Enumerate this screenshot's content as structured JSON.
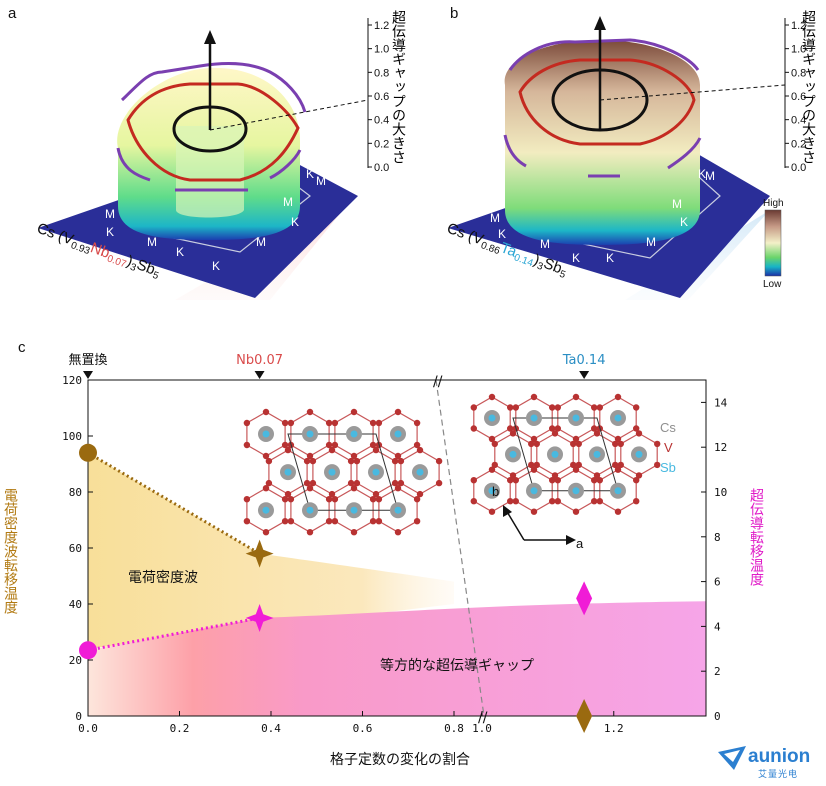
{
  "panel_a": {
    "letter": "a",
    "axis_title": "超伝導ギャップの大きさ",
    "ticks": [
      "1.2",
      "1.0",
      "0.8",
      "0.6",
      "0.4",
      "0.2",
      "0.0"
    ],
    "formula": {
      "prefix": "Cs (V",
      "sub1": "0.93",
      "dopant": "Nb",
      "sub2": "0.07",
      "suffix": ")",
      "sub3": "3",
      "tail": "Sb",
      "sub4": "5"
    },
    "labels": [
      "M",
      "M",
      "M",
      "M",
      "M",
      "M",
      "K",
      "K",
      "K",
      "K",
      "K",
      "K"
    ]
  },
  "panel_b": {
    "letter": "b",
    "axis_title": "超伝導ギャップの大きさ",
    "ticks": [
      "1.2",
      "1.0",
      "0.8",
      "0.6",
      "0.4",
      "0.2",
      "0.0"
    ],
    "formula": {
      "prefix": "Cs (V",
      "sub1": "0.86",
      "dopant": "Ta",
      "sub2": "0.14",
      "suffix": ")",
      "sub3": "3",
      "tail": "Sb",
      "sub4": "5"
    },
    "labels": [
      "M",
      "M",
      "M",
      "M",
      "M",
      "M",
      "K",
      "K",
      "K",
      "K",
      "K",
      "K"
    ],
    "colorbar": {
      "high": "High",
      "low": "Low"
    }
  },
  "panel_c": {
    "letter": "c"
  },
  "chart_data": {
    "type": "scatter",
    "xlabel": "格子定数の変化の割合",
    "ylabel_left": "電荷密度波転移温度",
    "ylabel_right": "超伝導転移温度",
    "x_ticks": [
      "0.0",
      "0.2",
      "0.4",
      "0.6",
      "0.8",
      "1.0",
      "1.2"
    ],
    "y_left_ticks": [
      "0",
      "20",
      "40",
      "60",
      "80",
      "100",
      "120"
    ],
    "y_right_ticks": [
      "0",
      "2",
      "4",
      "6",
      "8",
      "10",
      "12",
      "14"
    ],
    "xlim": [
      0.0,
      1.34
    ],
    "x_break": [
      0.95,
      1.0
    ],
    "ylim_left": [
      0,
      120
    ],
    "ylim_right": [
      0,
      15
    ],
    "top_markers": [
      {
        "label": "無置換",
        "x": 0.0,
        "color": "#111111"
      },
      {
        "label": "Nb0.07",
        "x": 0.375,
        "color": "#d94a4a"
      },
      {
        "label": "Ta0.14",
        "x": 1.155,
        "color": "#2a8ec4"
      }
    ],
    "series": [
      {
        "name": "CDW",
        "color": "#9a6a10",
        "points": [
          {
            "x": 0.0,
            "y": 94,
            "marker": "circle"
          },
          {
            "x": 0.375,
            "y": 58,
            "marker": "star"
          },
          {
            "x": 1.155,
            "y": 0,
            "marker": "diamond"
          }
        ]
      },
      {
        "name": "SC",
        "color": "#f01cd6",
        "points": [
          {
            "x": 0.0,
            "y": 23.5,
            "marker": "circle"
          },
          {
            "x": 0.375,
            "y": 35,
            "marker": "star"
          },
          {
            "x": 1.155,
            "y": 42,
            "marker": "diamond"
          }
        ]
      }
    ],
    "region_labels": {
      "cdw": "電荷密度波",
      "sc": "等方的な超伝導ギャップ"
    },
    "legend": {
      "cs": "Cs",
      "v": "V",
      "sb": "Sb"
    },
    "lattice_axes": {
      "a": "a",
      "b": "b"
    }
  },
  "watermark": {
    "main": "aunion",
    "sub": "艾量光电"
  },
  "colors": {
    "cdw": "#f4d68a",
    "sc": "#f79ad7",
    "cs": "#8f8f8f",
    "v": "#b83232",
    "sb": "#49b9e0"
  }
}
